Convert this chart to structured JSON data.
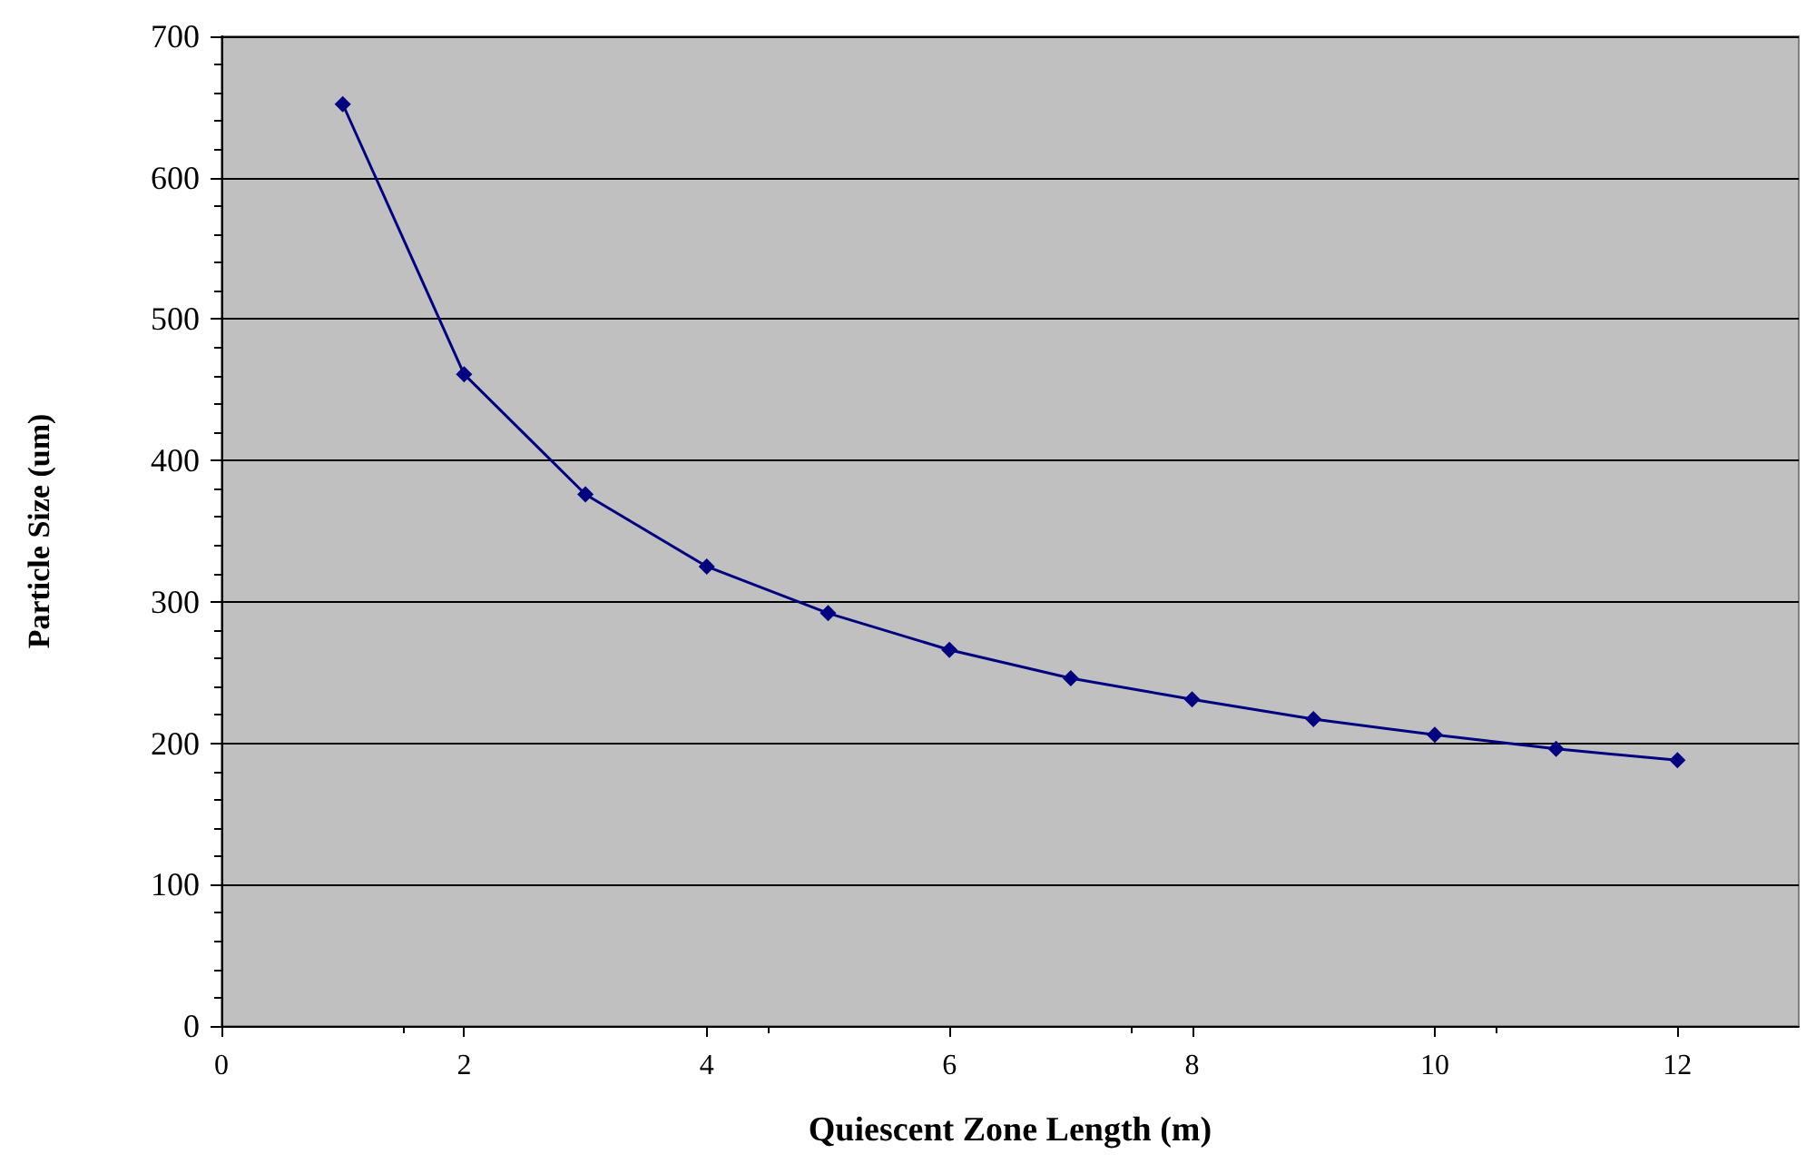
{
  "chart_data": {
    "type": "line",
    "xlabel": "Quiescent Zone Length (m)",
    "ylabel": "Particle Size (um)",
    "x": [
      1,
      2,
      3,
      4,
      5,
      6,
      7,
      8,
      9,
      10,
      11,
      12
    ],
    "series": [
      {
        "color": "#000080",
        "values": [
          652,
          461,
          376,
          325,
          292,
          266,
          246,
          231,
          217,
          206,
          196,
          188
        ]
      }
    ],
    "xlim": [
      0,
      13
    ],
    "xticks": [
      0,
      2,
      4,
      6,
      8,
      10,
      12
    ],
    "ylim": [
      0,
      700
    ],
    "yticks": [
      0,
      100,
      200,
      300,
      400,
      500,
      600,
      700
    ],
    "grid": "y",
    "marker": "diamond",
    "line_style": "solid"
  }
}
